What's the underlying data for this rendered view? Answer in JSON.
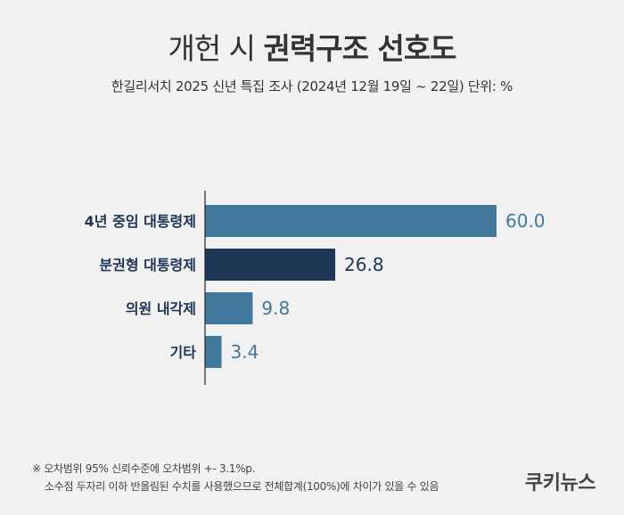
{
  "header": {
    "title_light": "개헌 시",
    "title_bold": "권력구조 선호도",
    "subtitle": "한길리서치 2025 신년 특집 조사 (2024년 12월 19일 ~ 22일) 단위: %"
  },
  "chart_data": {
    "type": "bar",
    "orientation": "horizontal",
    "categories": [
      "4년 중임 대통령제",
      "분권형 대통령제",
      "의원 내각제",
      "기타"
    ],
    "values": [
      60.0,
      26.8,
      9.8,
      3.4
    ],
    "value_labels": [
      "60.0",
      "26.8",
      "9.8",
      "3.4"
    ],
    "colors": [
      "#42789b",
      "#1e3556",
      "#42789b",
      "#42789b"
    ],
    "label_colors": [
      "#42789b",
      "#1e3556",
      "#42789b",
      "#42789b"
    ],
    "xlim": [
      0,
      60
    ],
    "grid": false
  },
  "footnote": {
    "line1": "※ 오차범위 95% 신뢰수준에 오차범위 +- 3.1%p.",
    "line2": "소수점 두자리 이하 반올림된 수치를 사용했으므로 전체합계(100%)에 차이가 있을 수 있음"
  },
  "brand": "쿠키뉴스"
}
